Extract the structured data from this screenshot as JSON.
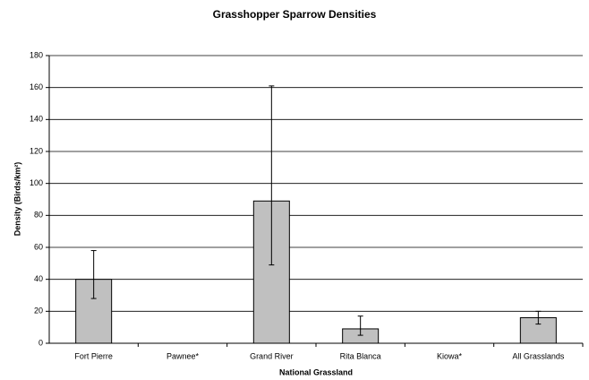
{
  "chart_data": {
    "type": "bar",
    "title": "Grasshopper Sparrow Densities",
    "x_label": "National Grassland",
    "y_label": "Density (Birds/km²)",
    "categories": [
      "Fort Pierre",
      "Pawnee*",
      "Grand River",
      "Rita Blanca",
      "Kiowa*",
      "All Grasslands"
    ],
    "values": [
      40,
      null,
      89,
      9,
      null,
      16
    ],
    "error_low": [
      28,
      null,
      49,
      5,
      null,
      12
    ],
    "error_high": [
      58,
      null,
      161,
      17,
      null,
      20
    ],
    "color": "#c0c0c0",
    "ylim": [
      0,
      180
    ],
    "yticks": [
      0,
      20,
      40,
      60,
      80,
      100,
      120,
      140,
      160,
      180
    ],
    "grid": true
  }
}
